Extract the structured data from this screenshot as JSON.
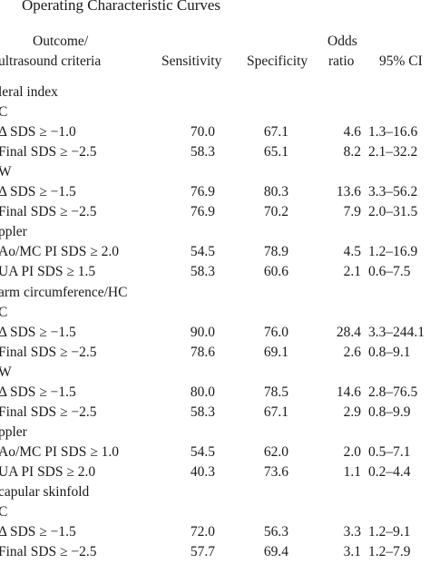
{
  "title": "Operating Characteristic Curves",
  "header": {
    "outcome": [
      "Outcome/",
      "ultrasound criteria"
    ],
    "sensitivity": "Sensitivity",
    "specificity": "Specificity",
    "odds_ratio": [
      "Odds",
      "ratio"
    ],
    "ci": "95% CI"
  },
  "rows": [
    [
      "leral index"
    ],
    [
      "C"
    ],
    [
      "Δ SDS ≥ −1.0",
      "70.0",
      "67.1",
      "4.6",
      "1.3–16.6"
    ],
    [
      "Final SDS ≥ −2.5",
      "58.3",
      "65.1",
      "8.2",
      "2.1–32.2"
    ],
    [
      "W"
    ],
    [
      "Δ SDS ≥ −1.5",
      "76.9",
      "80.3",
      "13.6",
      "3.3–56.2"
    ],
    [
      "Final SDS ≥ −2.5",
      "76.9",
      "70.2",
      "7.9",
      "2.0–31.5"
    ],
    [
      "ppler"
    ],
    [
      "Ao/MC PI SDS ≥ 2.0",
      "54.5",
      "78.9",
      "4.5",
      "1.2–16.9"
    ],
    [
      "UA PI SDS ≥ 1.5",
      "58.3",
      "60.6",
      "2.1",
      "0.6–7.5"
    ],
    [
      "arm circumference/HC"
    ],
    [
      "C"
    ],
    [
      "Δ SDS ≥ −1.5",
      "90.0",
      "76.0",
      "28.4",
      "3.3–244.1"
    ],
    [
      "Final SDS ≥ −2.5",
      "78.6",
      "69.1",
      "2.6",
      "0.8–9.1"
    ],
    [
      "W"
    ],
    [
      "Δ SDS ≥ −1.5",
      "80.0",
      "78.5",
      "14.6",
      "2.8–76.5"
    ],
    [
      "Final SDS ≥ −2.5",
      "58.3",
      "67.1",
      "2.9",
      "0.8–9.9"
    ],
    [
      "ppler"
    ],
    [
      "Ao/MC PI SDS ≥ 1.0",
      "54.5",
      "62.0",
      "2.0",
      "0.5–7.1"
    ],
    [
      "UA PI SDS ≥ 2.0",
      "40.3",
      "73.6",
      "1.1",
      "0.2–4.4"
    ],
    [
      "capular skinfold"
    ],
    [
      "C"
    ],
    [
      "Δ SDS ≥ −1.5",
      "72.0",
      "56.3",
      "3.3",
      "1.2–9.1"
    ],
    [
      "Final SDS ≥ −2.5",
      "57.7",
      "69.4",
      "3.1",
      "1.2–7.9"
    ]
  ]
}
